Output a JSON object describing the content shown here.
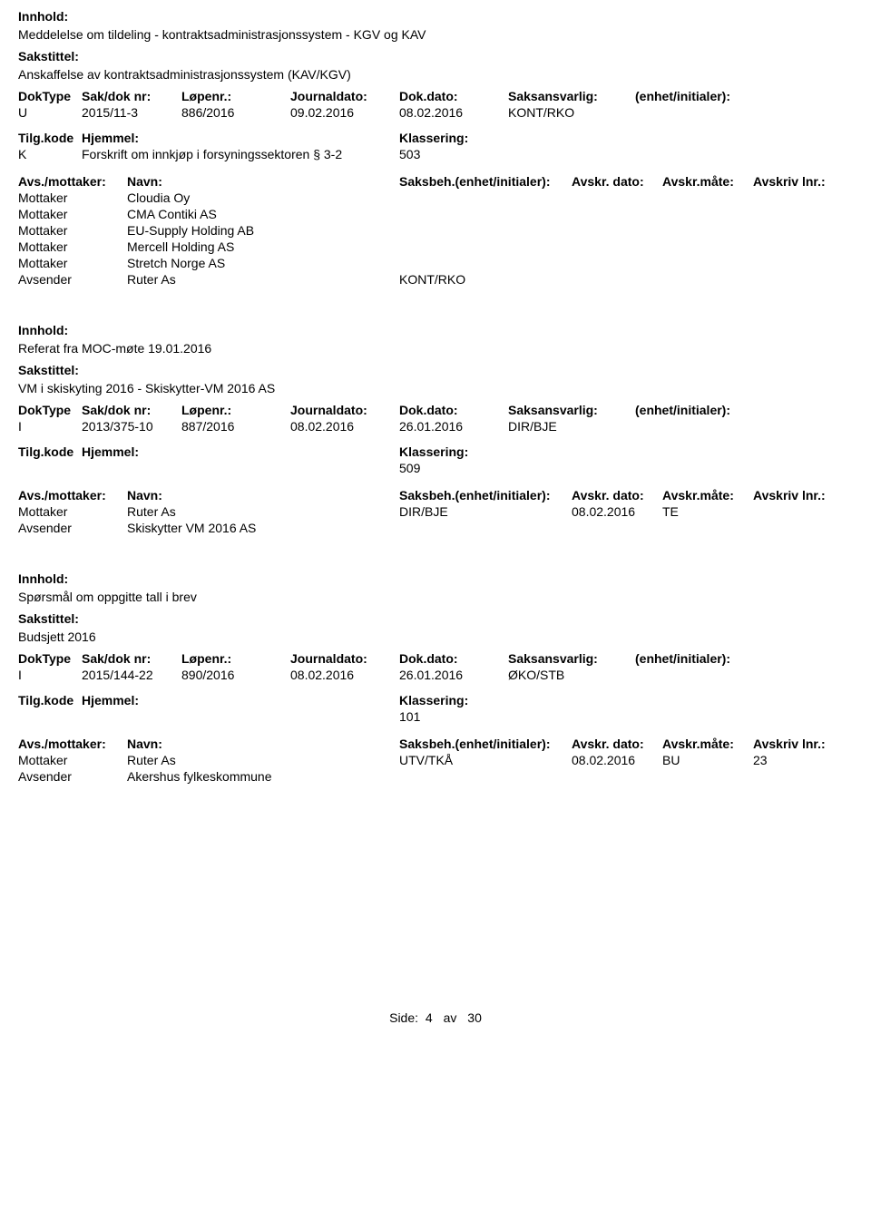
{
  "labels": {
    "innhold": "Innhold:",
    "sakstittel": "Sakstittel:",
    "doktype": "DokType",
    "sakdok": "Sak/dok nr:",
    "lopenr": "Løpenr.:",
    "journaldato": "Journaldato:",
    "dokdato": "Dok.dato:",
    "saksansvarlig": "Saksansvarlig:",
    "enhet_init": "(enhet/initialer):",
    "tilgkode": "Tilg.kode",
    "hjemmel": "Hjemmel:",
    "klassering": "Klassering:",
    "avs_mottaker": "Avs./mottaker:",
    "navn": "Navn:",
    "saksbeh": "Saksbeh.(enhet/initialer):",
    "avskr_dato": "Avskr. dato:",
    "avskr_mate": "Avskr.måte:",
    "avskriv_lnr": "Avskriv lnr.:"
  },
  "records": [
    {
      "innhold": "Meddelelse om tildeling - kontraktsadministrasjonssystem - KGV og KAV",
      "sakstittel": "Anskaffelse av kontraktsadministrasjonssystem (KAV/KGV)",
      "doktype": "U",
      "sakdok": "2015/11-3",
      "lopenr": "886/2016",
      "journaldato": "09.02.2016",
      "dokdato": "08.02.2016",
      "saksansvarlig": "KONT/RKO",
      "tilgkode": "K",
      "hjemmel": "Forskrift om innkjøp i forsyningssektoren § 3-2",
      "klassering": "503",
      "parties": [
        {
          "type": "Mottaker",
          "navn": "Cloudia Oy",
          "saksbeh": "",
          "avskr_dato": "",
          "avskr_mate": "",
          "avskr_lnr": ""
        },
        {
          "type": "Mottaker",
          "navn": "CMA Contiki AS",
          "saksbeh": "",
          "avskr_dato": "",
          "avskr_mate": "",
          "avskr_lnr": ""
        },
        {
          "type": "Mottaker",
          "navn": "EU-Supply Holding AB",
          "saksbeh": "",
          "avskr_dato": "",
          "avskr_mate": "",
          "avskr_lnr": ""
        },
        {
          "type": "Mottaker",
          "navn": "Mercell Holding AS",
          "saksbeh": "",
          "avskr_dato": "",
          "avskr_mate": "",
          "avskr_lnr": ""
        },
        {
          "type": "Mottaker",
          "navn": "Stretch Norge AS",
          "saksbeh": "",
          "avskr_dato": "",
          "avskr_mate": "",
          "avskr_lnr": ""
        },
        {
          "type": "Avsender",
          "navn": "Ruter As",
          "saksbeh": "KONT/RKO",
          "avskr_dato": "",
          "avskr_mate": "",
          "avskr_lnr": ""
        }
      ]
    },
    {
      "innhold": "Referat fra MOC-møte 19.01.2016",
      "sakstittel": "VM i skiskyting 2016 - Skiskytter-VM 2016 AS",
      "doktype": "I",
      "sakdok": "2013/375-10",
      "lopenr": "887/2016",
      "journaldato": "08.02.2016",
      "dokdato": "26.01.2016",
      "saksansvarlig": "DIR/BJE",
      "tilgkode": "",
      "hjemmel": "",
      "klassering": "509",
      "parties": [
        {
          "type": "Mottaker",
          "navn": "Ruter As",
          "saksbeh": "DIR/BJE",
          "avskr_dato": "08.02.2016",
          "avskr_mate": "TE",
          "avskr_lnr": ""
        },
        {
          "type": "Avsender",
          "navn": "Skiskytter VM 2016 AS",
          "saksbeh": "",
          "avskr_dato": "",
          "avskr_mate": "",
          "avskr_lnr": ""
        }
      ]
    },
    {
      "innhold": "Spørsmål om oppgitte tall i brev",
      "sakstittel": "Budsjett 2016",
      "doktype": "I",
      "sakdok": "2015/144-22",
      "lopenr": "890/2016",
      "journaldato": "08.02.2016",
      "dokdato": "26.01.2016",
      "saksansvarlig": "ØKO/STB",
      "tilgkode": "",
      "hjemmel": "",
      "klassering": "101",
      "parties": [
        {
          "type": "Mottaker",
          "navn": "Ruter As",
          "saksbeh": "UTV/TKÅ",
          "avskr_dato": "08.02.2016",
          "avskr_mate": "BU",
          "avskr_lnr": "23"
        },
        {
          "type": "Avsender",
          "navn": "Akershus fylkeskommune",
          "saksbeh": "",
          "avskr_dato": "",
          "avskr_mate": "",
          "avskr_lnr": ""
        }
      ]
    }
  ],
  "footer": {
    "side_label": "Side:",
    "page": "4",
    "of": "av",
    "total": "30"
  }
}
